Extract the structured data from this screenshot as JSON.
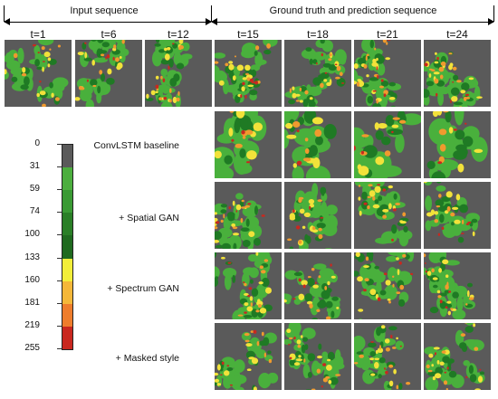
{
  "headers": {
    "input": "Input sequence",
    "output": "Ground truth and prediction sequence"
  },
  "time_labels": [
    "t=1",
    "t=6",
    "t=12",
    "t=15",
    "t=18",
    "t=21",
    "t=24"
  ],
  "row_labels": [
    "ConvLSTM baseline",
    "+ Spatial GAN",
    "+ Spectrum GAN",
    "+ Masked style"
  ],
  "colorbar": {
    "ticks": [
      "0",
      "31",
      "59",
      "74",
      "100",
      "133",
      "160",
      "181",
      "219",
      "255"
    ],
    "colors": [
      "#5a5a5a",
      "#4cae3e",
      "#3a9a34",
      "#2a7f27",
      "#1f6a1f",
      "#f2ee3a",
      "#f4b739",
      "#ee7d2c",
      "#d4352a",
      "#a8261f"
    ]
  },
  "palette": {
    "background": "#5a5a5a",
    "green": "#49b03c",
    "dark_green": "#1f7a24",
    "yellow": "#f2e23a",
    "orange": "#f09a2e",
    "red": "#c9281f"
  }
}
